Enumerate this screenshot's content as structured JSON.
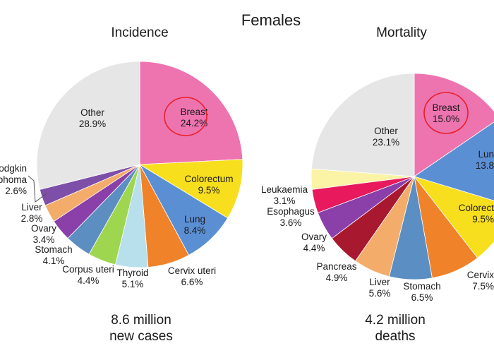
{
  "figure_title": "Females",
  "chart_data": [
    {
      "type": "pie",
      "title": "Incidence",
      "total_line1": "8.6 million",
      "total_line2": "new cases",
      "slices": [
        {
          "name": "Breast",
          "value": 24.2,
          "pct": "24.2%",
          "color": "#ee74b0",
          "circled": true
        },
        {
          "name": "Colorectum",
          "value": 9.5,
          "pct": "9.5%",
          "color": "#f7df1e"
        },
        {
          "name": "Lung",
          "value": 8.4,
          "pct": "8.4%",
          "color": "#5b8fd4"
        },
        {
          "name": "Cervix uteri",
          "value": 6.6,
          "pct": "6.6%",
          "color": "#f0822a"
        },
        {
          "name": "Thyroid",
          "value": 5.1,
          "pct": "5.1%",
          "color": "#b8e0ec"
        },
        {
          "name": "Corpus uteri",
          "value": 4.4,
          "pct": "4.4%",
          "color": "#9ed64f"
        },
        {
          "name": "Stomach",
          "value": 4.1,
          "pct": "4.1%",
          "color": "#5d8ec2"
        },
        {
          "name": "Ovary",
          "value": 3.4,
          "pct": "3.4%",
          "color": "#8b3fa8"
        },
        {
          "name": "Liver",
          "value": 2.8,
          "pct": "2.8%",
          "color": "#f4ac6a"
        },
        {
          "name": "Hodgkin\nmphoma",
          "value": 2.6,
          "pct": "2.6%",
          "color": "#7e4fa8"
        },
        {
          "name": "Other",
          "value": 28.9,
          "pct": "28.9%",
          "color": "#e6e6e6"
        }
      ]
    },
    {
      "type": "pie",
      "title": "Mortality",
      "total_line1": "4.2 million",
      "total_line2": "deaths",
      "slices": [
        {
          "name": "Breast",
          "value": 15.0,
          "pct": "15.0%",
          "color": "#ee74b0",
          "circled": true
        },
        {
          "name": "Lun",
          "value": 13.8,
          "pct": "13.8",
          "color": "#5b8fd4"
        },
        {
          "name": "Colorect",
          "value": 9.5,
          "pct": "9.5%",
          "color": "#f7df1e"
        },
        {
          "name": "Cervix",
          "value": 7.5,
          "pct": "7.5%",
          "color": "#f0822a"
        },
        {
          "name": "Stomach",
          "value": 6.5,
          "pct": "6.5%",
          "color": "#5b8fc4"
        },
        {
          "name": "Liver",
          "value": 5.6,
          "pct": "5.6%",
          "color": "#f4ac6a"
        },
        {
          "name": "Pancreas",
          "value": 4.9,
          "pct": "4.9%",
          "color": "#a8182e"
        },
        {
          "name": "Ovary",
          "value": 4.4,
          "pct": "4.4%",
          "color": "#8b3fa8"
        },
        {
          "name": "Esophagus",
          "value": 3.6,
          "pct": "3.6%",
          "color": "#e8195c"
        },
        {
          "name": "Leukaemia",
          "value": 3.1,
          "pct": "3.1%",
          "color": "#fbf3a6"
        },
        {
          "name": "Other",
          "value": 23.1,
          "pct": "23.1%",
          "color": "#e6e6e6"
        }
      ]
    }
  ]
}
